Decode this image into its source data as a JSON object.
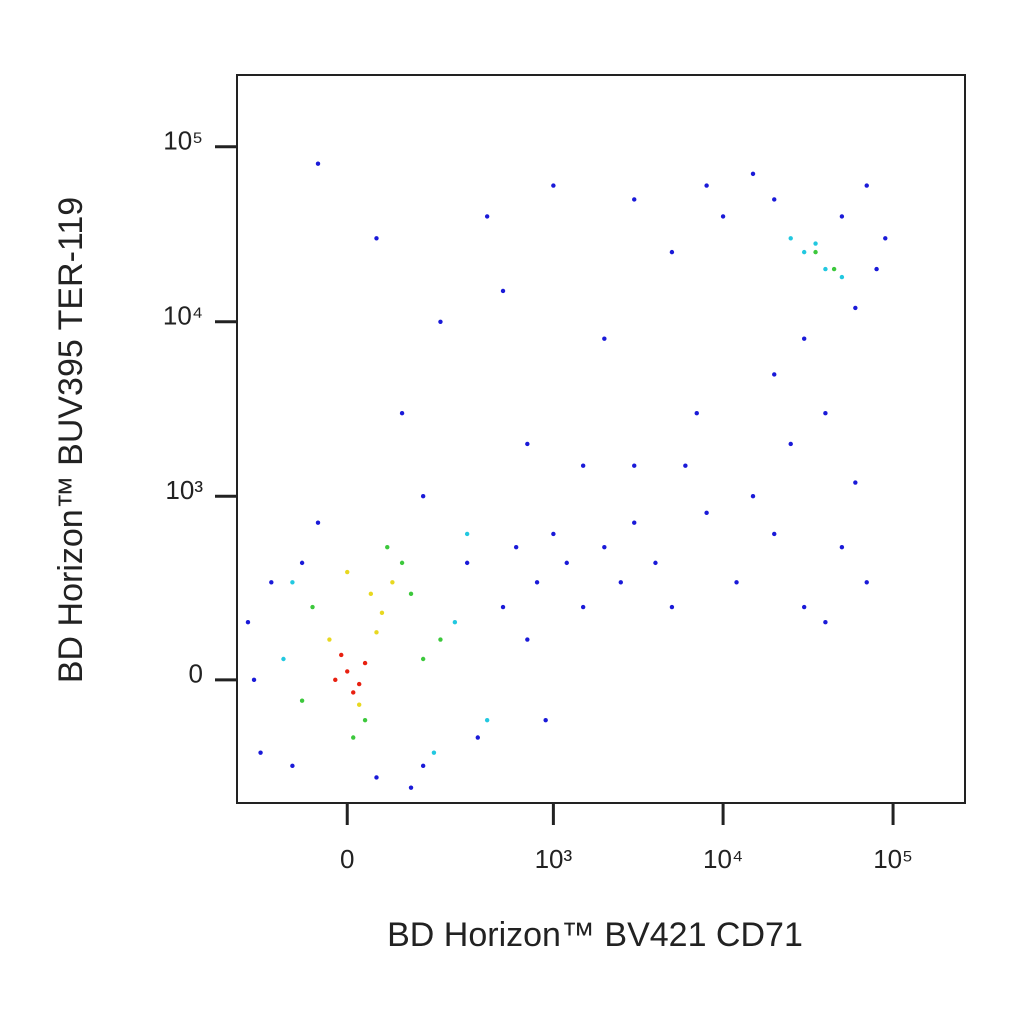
{
  "chart_data": {
    "type": "scatter",
    "x_label": "BD Horizon™ BV421 CD71",
    "y_label": "BD Horizon™ BUV395 TER-119",
    "xscale": "biexponential",
    "yscale": "biexponential",
    "xlim": [
      -260,
      265000
    ],
    "ylim": [
      -437,
      257000
    ],
    "xticks": [
      0,
      {
        "value": 1000,
        "label": "10³"
      },
      {
        "value": 10000,
        "label": "10⁴"
      },
      {
        "value": 100000,
        "label": "10⁵"
      }
    ],
    "yticks": [
      0,
      {
        "value": 1000,
        "label": "10³"
      },
      {
        "value": 10000,
        "label": "10⁴"
      },
      {
        "value": 100000,
        "label": "10⁵"
      }
    ],
    "series": [
      {
        "color": "#1a1ad8",
        "x": [
          -200,
          -180,
          -150,
          -100,
          -50,
          50,
          150,
          300,
          350,
          500,
          600,
          700,
          800,
          1000,
          1200,
          1500,
          2000,
          2500,
          3000,
          4000,
          5000,
          6000,
          8000,
          12000,
          15000,
          20000,
          25000,
          30000,
          40000,
          50000,
          70000,
          20000,
          30000,
          60000,
          80000,
          10000,
          8000,
          15000,
          20000,
          50000,
          70000,
          90000,
          3000,
          5000,
          1000,
          400,
          200,
          100,
          -50,
          50,
          500,
          2000,
          700,
          -80,
          3000,
          120,
          -220,
          900,
          60000,
          40000,
          150,
          1500,
          7000
        ],
        "values": [
          0,
          -200,
          300,
          -250,
          700,
          -300,
          -250,
          400,
          -150,
          200,
          500,
          100,
          300,
          600,
          400,
          200,
          500,
          300,
          700,
          400,
          200,
          1500,
          800,
          300,
          1000,
          600,
          2000,
          200,
          3000,
          500,
          300,
          5000,
          8000,
          12000,
          20000,
          40000,
          60000,
          70000,
          50000,
          40000,
          60000,
          30000,
          50000,
          25000,
          60000,
          40000,
          10000,
          3000,
          80000,
          30000,
          15000,
          8000,
          2000,
          400,
          1500,
          -350,
          150,
          -100,
          1200,
          150,
          1000,
          1500,
          3000
        ]
      },
      {
        "color": "#22c8e0",
        "x": [
          -100,
          250,
          300,
          400,
          -120,
          180,
          30000,
          40000,
          25000,
          50000,
          35000
        ],
        "values": [
          300,
          150,
          600,
          -100,
          50,
          -200,
          25000,
          20000,
          30000,
          18000,
          28000
        ]
      },
      {
        "color": "#3cc83c",
        "x": [
          -60,
          100,
          150,
          30,
          -80,
          120,
          70,
          200,
          10,
          35000,
          45000
        ],
        "values": [
          200,
          400,
          50,
          -100,
          -50,
          250,
          500,
          100,
          -150,
          25000,
          20000
        ]
      },
      {
        "color": "#e8d820",
        "x": [
          40,
          60,
          -30,
          80,
          20,
          50,
          0
        ],
        "values": [
          250,
          180,
          100,
          300,
          -60,
          120,
          350
        ]
      },
      {
        "color": "#e82010",
        "x": [
          -20,
          10,
          30,
          0,
          -10,
          20
        ],
        "values": [
          0,
          -30,
          40,
          20,
          60,
          -10
        ]
      }
    ]
  }
}
